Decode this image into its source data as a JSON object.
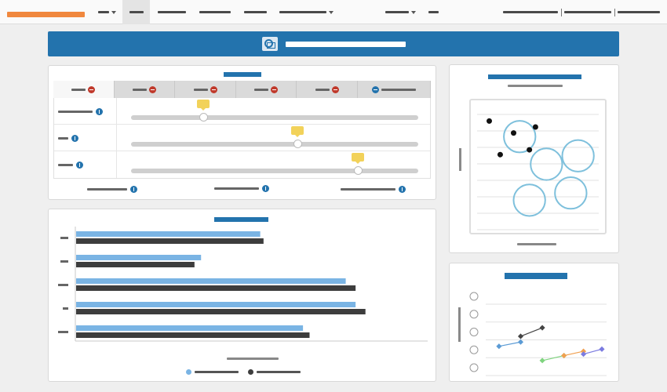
{
  "colors": {
    "accent": "#2373ad",
    "logo": "#f0883e",
    "series_light": "#7ab4e4",
    "series_dark": "#3d3d3d",
    "tooltip": "#f2d25a",
    "remove": "#c0392b",
    "circle": "#7ec0dc"
  },
  "nav": {
    "items": [
      {
        "name": "nav-menu-1",
        "x": 0,
        "w": 0,
        "active": false
      },
      {
        "name": "nav-menu-2",
        "active": true
      }
    ]
  },
  "sliders": {
    "rows": [
      {
        "value": 0.25
      },
      {
        "value": 0.58
      },
      {
        "value": 0.79
      }
    ]
  },
  "chart_data": {
    "type": "bar",
    "orientation": "horizontal",
    "categories": [
      "",
      "",
      "",
      "",
      ""
    ],
    "xlim": [
      0,
      1
    ],
    "series": [
      {
        "values": [
          0.56,
          0.38,
          0.82,
          0.85,
          0.69
        ],
        "color": "#7ab4e4"
      },
      {
        "values": [
          0.57,
          0.36,
          0.85,
          0.88,
          0.71
        ],
        "color": "#3d3d3d"
      }
    ],
    "grid": false,
    "legend_position": "bottom"
  },
  "bubble_chart": {
    "type": "scatter",
    "grid": true,
    "points": [
      [
        0.1,
        0.88
      ],
      [
        0.3,
        0.78
      ],
      [
        0.48,
        0.83
      ],
      [
        0.43,
        0.64
      ],
      [
        0.19,
        0.6
      ]
    ],
    "circles": [
      [
        0.35,
        0.75,
        0.13
      ],
      [
        0.57,
        0.52,
        0.13
      ],
      [
        0.83,
        0.59,
        0.13
      ],
      [
        0.77,
        0.28,
        0.13
      ],
      [
        0.43,
        0.22,
        0.13
      ]
    ]
  },
  "line_chart": {
    "type": "line",
    "grid": true,
    "series": [
      {
        "color": "#5b9bd5",
        "points": [
          [
            0.05,
            0.3
          ],
          [
            0.25,
            0.36
          ]
        ]
      },
      {
        "color": "#444444",
        "points": [
          [
            0.25,
            0.44
          ],
          [
            0.45,
            0.56
          ]
        ]
      },
      {
        "color": "#7fd47f",
        "points": [
          [
            0.45,
            0.1
          ],
          [
            0.65,
            0.17
          ]
        ]
      },
      {
        "color": "#f0a050",
        "points": [
          [
            0.65,
            0.17
          ],
          [
            0.83,
            0.23
          ]
        ]
      },
      {
        "color": "#7b7be0",
        "points": [
          [
            0.83,
            0.19
          ],
          [
            1.0,
            0.26
          ]
        ]
      }
    ]
  }
}
